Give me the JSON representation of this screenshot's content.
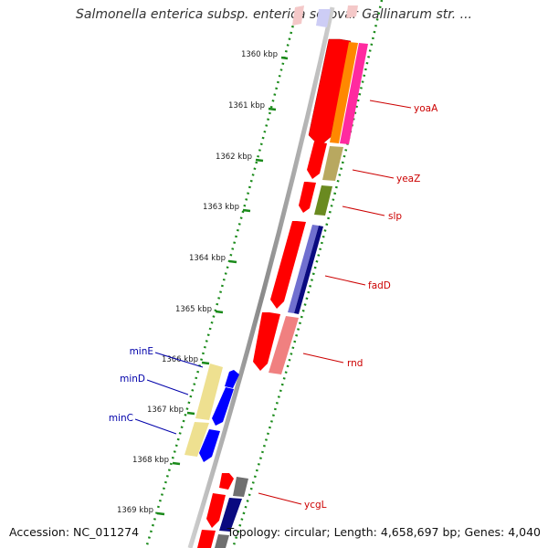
{
  "title": "Salmonella enterica subsp. enterica serovar Gallinarum str. ...",
  "footer": {
    "accession": "Accession: NC_011274",
    "summary": "Topology: circular; Length: 4,658,697 bp; Genes: 4,040"
  },
  "ticks": [
    "1360 kbp",
    "1361 kbp",
    "1362 kbp",
    "1363 kbp",
    "1364 kbp",
    "1365 kbp",
    "1366 kbp",
    "1367 kbp",
    "1368 kbp",
    "1369 kbp"
  ],
  "genes_right": [
    "yoaA",
    "yeaZ",
    "slp",
    "fadD",
    "rnd",
    "ycgL"
  ],
  "genes_left": [
    "minE",
    "minD",
    "minC"
  ],
  "colors": {
    "forward": "#ff0000",
    "cog_orange": "#ff8800",
    "cog_pink": "#ff2aa0",
    "cog_olive": "#b8a860",
    "cog_green": "#6a8a20",
    "cog_navy": "#0a0a80",
    "cog_lavender": "#7070d0",
    "cog_salmon": "#f08080",
    "cog_blue": "#0000ff",
    "cog_yellow": "#eee090",
    "cog_gray": "#707070",
    "tick_green": "#1a8a1a",
    "label_red": "#cc0000",
    "label_blue": "#0000aa"
  }
}
